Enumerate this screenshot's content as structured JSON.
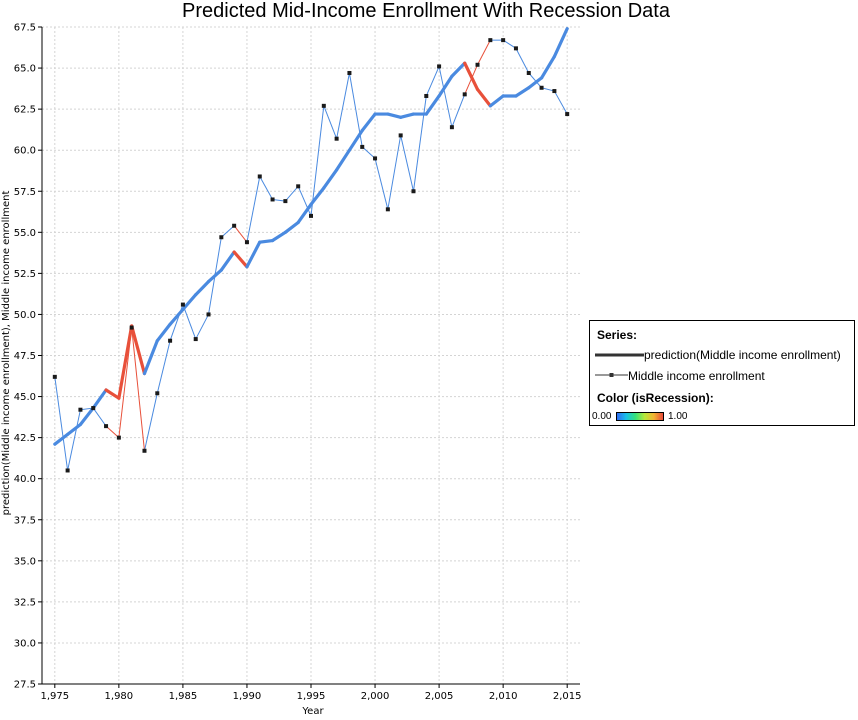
{
  "chart_data": {
    "type": "line",
    "title": "Predicted Mid-Income Enrollment With Recession Data",
    "xlabel": "Year",
    "ylabel": "prediction(Middle income enrollment), Middle income enrollment",
    "xlim": [
      1974,
      2016
    ],
    "ylim": [
      27.5,
      67.5
    ],
    "x_ticks": [
      "1,975",
      "1,980",
      "1,985",
      "1,990",
      "1,995",
      "2,000",
      "2,005",
      "2,010",
      "2,015"
    ],
    "y_ticks": [
      "27.5",
      "30.0",
      "32.5",
      "35.0",
      "37.5",
      "40.0",
      "42.5",
      "45.0",
      "47.5",
      "50.0",
      "52.5",
      "55.0",
      "57.5",
      "60.0",
      "62.5",
      "65.0",
      "67.5"
    ],
    "grid": true,
    "legend_position": "right",
    "x": [
      1975,
      1976,
      1977,
      1978,
      1979,
      1980,
      1981,
      1982,
      1983,
      1984,
      1985,
      1986,
      1987,
      1988,
      1989,
      1990,
      1991,
      1992,
      1993,
      1994,
      1995,
      1996,
      1997,
      1998,
      1999,
      2000,
      2001,
      2002,
      2003,
      2004,
      2005,
      2006,
      2007,
      2008,
      2009,
      2010,
      2011,
      2012,
      2013,
      2014,
      2015
    ],
    "isRecession": [
      0,
      0,
      0,
      0,
      1,
      1,
      1,
      1,
      0,
      0,
      0,
      0,
      0,
      0,
      1,
      1,
      0,
      0,
      0,
      0,
      0,
      0,
      0,
      0,
      0,
      0,
      0,
      0,
      0,
      0,
      0,
      0,
      1,
      1,
      1,
      0,
      0,
      0,
      0,
      0,
      0
    ],
    "series": [
      {
        "name": "prediction(Middle income enrollment)",
        "style": "thick-line",
        "values": [
          42.1,
          42.7,
          43.3,
          44.3,
          45.4,
          44.9,
          49.3,
          46.4,
          48.4,
          49.4,
          50.3,
          51.2,
          52.0,
          52.7,
          53.8,
          52.9,
          54.4,
          54.5,
          55.0,
          55.6,
          56.7,
          57.7,
          58.8,
          60.0,
          61.2,
          62.2,
          62.2,
          62.0,
          62.2,
          62.2,
          63.3,
          64.5,
          65.3,
          63.7,
          62.7,
          63.3,
          63.3,
          63.8,
          64.4,
          65.7,
          67.4
        ]
      },
      {
        "name": "Middle income enrollment",
        "style": "thin-line-with-markers",
        "values": [
          46.2,
          40.5,
          44.2,
          44.3,
          43.2,
          42.5,
          49.2,
          41.7,
          45.2,
          48.4,
          50.6,
          48.5,
          50.0,
          54.7,
          55.4,
          54.4,
          58.4,
          57.0,
          56.9,
          57.8,
          56.0,
          62.7,
          60.7,
          64.7,
          60.2,
          59.5,
          56.4,
          60.9,
          57.5,
          63.3,
          65.1,
          61.4,
          63.4,
          65.2,
          66.7,
          66.7,
          66.2,
          64.7,
          63.8,
          63.6,
          62.2
        ]
      }
    ],
    "legend": {
      "series_heading": "Series:",
      "items": [
        "prediction(Middle income enrollment)",
        "Middle income enrollment"
      ],
      "color_heading": "Color (isRecession):",
      "color_min": "0.00",
      "color_max": "1.00"
    },
    "colors": {
      "normal": "#4a8ae0",
      "recession": "#e8503a",
      "grid": "#d4d4d4",
      "marker": "#1a1a1a"
    }
  }
}
